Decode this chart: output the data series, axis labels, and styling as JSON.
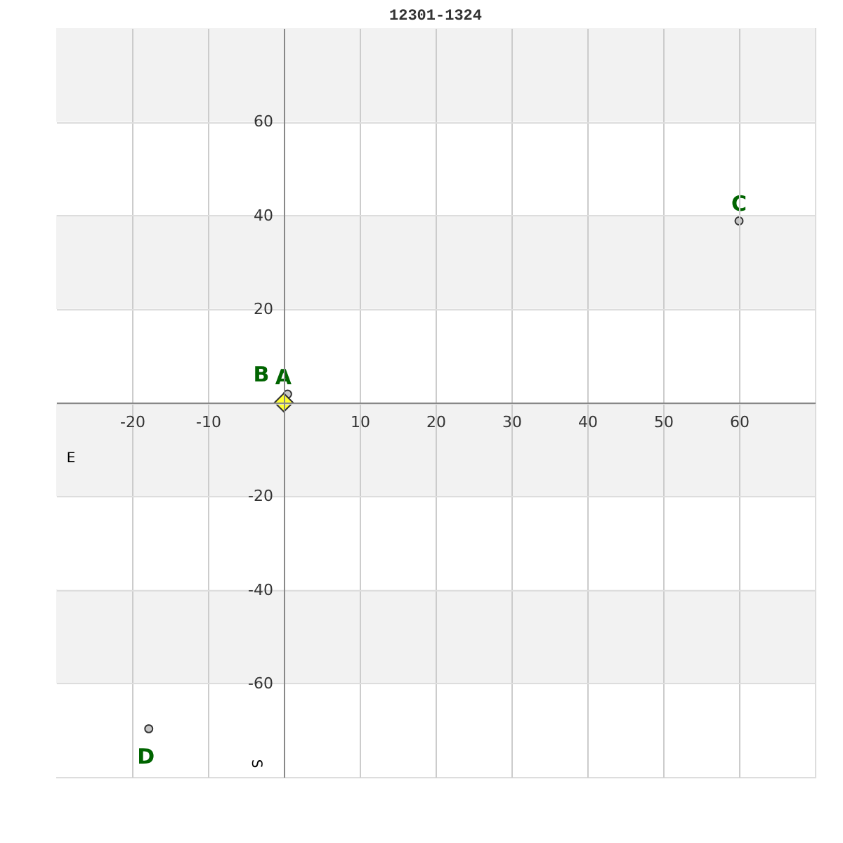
{
  "chart_data": {
    "type": "scatter",
    "title": "12301-1324",
    "xlabel": "E",
    "ylabel": "S",
    "xlim": [
      -30,
      70
    ],
    "ylim": [
      -80,
      80
    ],
    "xticks": [
      -20,
      -10,
      {
        "value": 0,
        "label": null
      },
      10,
      20,
      30,
      40,
      50,
      60
    ],
    "yticks": [
      -60,
      -40,
      -20,
      {
        "value": 0,
        "label": null
      },
      20,
      40,
      60
    ],
    "grid": true,
    "series": [
      {
        "color": "#c8c8c8",
        "marker": "circle",
        "x": [
          0.5,
          60,
          -17.8
        ],
        "values": [
          1.8,
          38.8,
          -69.7
        ]
      },
      {
        "color": "#ffff33",
        "marker": "diamond",
        "x": [
          0
        ],
        "values": [
          0
        ]
      }
    ],
    "annotations": [
      {
        "text": "A",
        "x": 0.5,
        "y": 1.8
      },
      {
        "text": "B",
        "x": 0,
        "y": 0
      },
      {
        "text": "C",
        "x": 60,
        "y": 38.8
      },
      {
        "text": "D",
        "x": -17.8,
        "y": -69.7
      }
    ]
  }
}
